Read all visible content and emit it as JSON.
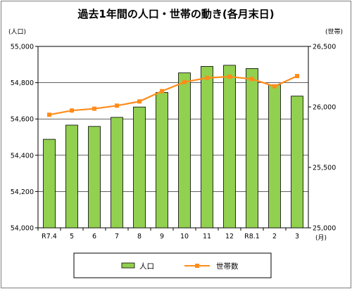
{
  "chart_data": {
    "type": "bar+line",
    "title": "過去1年間の人口・世帯の動き(各月末日)",
    "categories": [
      "R7.4",
      "5",
      "6",
      "7",
      "8",
      "9",
      "10",
      "11",
      "12",
      "R8.1",
      "2",
      "3"
    ],
    "series": [
      {
        "name": "人口",
        "type": "bar",
        "axis": "left",
        "color": "#92d050",
        "values": [
          54488,
          54566,
          54559,
          54609,
          54666,
          54746,
          54854,
          54890,
          54896,
          54878,
          54788,
          54726
        ]
      },
      {
        "name": "世帯数",
        "type": "line",
        "axis": "right",
        "color": "#ff8c1a",
        "values": [
          25935,
          25970,
          25985,
          26010,
          26045,
          26130,
          26205,
          26240,
          26250,
          26230,
          26170,
          26255
        ]
      }
    ],
    "y_left": {
      "unit_label": "(人口)",
      "min": 54000,
      "max": 55000,
      "ticks": [
        "54,000",
        "54,200",
        "54,400",
        "54,600",
        "54,800",
        "55,000"
      ],
      "tick_values": [
        54000,
        54200,
        54400,
        54600,
        54800,
        55000
      ]
    },
    "y_right": {
      "unit_label": "(世帯)",
      "min": 25000,
      "max": 26500,
      "ticks": [
        "25,000",
        "25,500",
        "26,000",
        "26,500"
      ],
      "tick_values": [
        25000,
        25500,
        26000,
        26500
      ]
    },
    "x_unit_label": "(月)",
    "grid": true,
    "legend_position": "bottom"
  }
}
